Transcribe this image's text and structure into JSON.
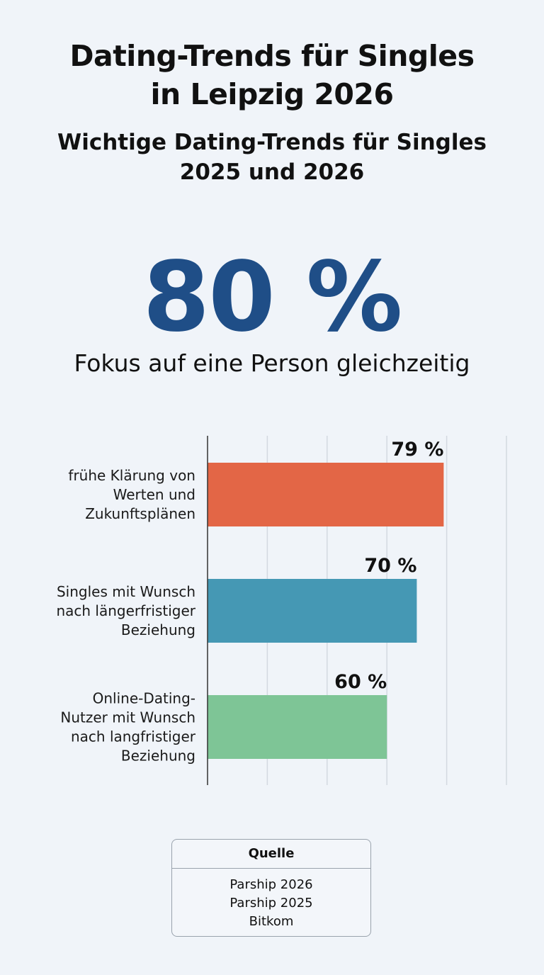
{
  "header": {
    "title_lines": [
      "Dating-Trends für Singles",
      "in Leipzig 2026"
    ],
    "subtitle_lines": [
      "Wichtige Dating-Trends für Singles",
      "2025 und 2026"
    ]
  },
  "highlight": {
    "value": "80 %",
    "caption": "Fokus auf eine Person gleichzeitig",
    "color": "#1f4e87"
  },
  "chart_data": {
    "type": "bar",
    "orientation": "horizontal",
    "categories": [
      [
        "frühe Klärung von",
        "Werten und",
        "Zukunftsplänen"
      ],
      [
        "Singles mit Wunsch",
        "nach längerfristiger",
        "Beziehung"
      ],
      [
        "Online-Dating-",
        "Nutzer mit Wunsch",
        "nach langfristiger",
        "Beziehung"
      ]
    ],
    "values": [
      79,
      70,
      60
    ],
    "value_labels": [
      "79 %",
      "70 %",
      "60 %"
    ],
    "colors": [
      "#e36646",
      "#4598b4",
      "#7ec596"
    ],
    "xlim": [
      0,
      100
    ],
    "gridlines": [
      0,
      20,
      40,
      60,
      80,
      100
    ],
    "grid": true
  },
  "source": {
    "title": "Quelle",
    "items": [
      "Parship 2026",
      "Parship 2025",
      "Bitkom"
    ]
  }
}
